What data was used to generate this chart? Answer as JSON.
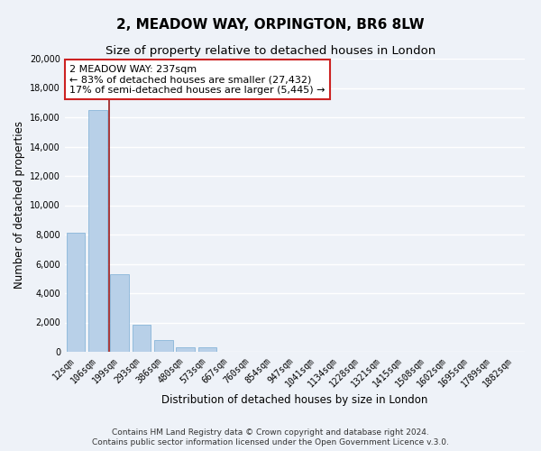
{
  "title": "2, MEADOW WAY, ORPINGTON, BR6 8LW",
  "subtitle": "Size of property relative to detached houses in London",
  "xlabel": "Distribution of detached houses by size in London",
  "ylabel": "Number of detached properties",
  "categories": [
    "12sqm",
    "106sqm",
    "199sqm",
    "293sqm",
    "386sqm",
    "480sqm",
    "573sqm",
    "667sqm",
    "760sqm",
    "854sqm",
    "947sqm",
    "1041sqm",
    "1134sqm",
    "1228sqm",
    "1321sqm",
    "1415sqm",
    "1508sqm",
    "1602sqm",
    "1695sqm",
    "1789sqm",
    "1882sqm"
  ],
  "values": [
    8100,
    16500,
    5300,
    1850,
    800,
    300,
    300,
    0,
    0,
    0,
    0,
    0,
    0,
    0,
    0,
    0,
    0,
    0,
    0,
    0,
    0
  ],
  "bar_color": "#b8d0e8",
  "bar_edge_color": "#7aadd4",
  "vline_color": "#9b1a1a",
  "annotation_line1": "2 MEADOW WAY: 237sqm",
  "annotation_line2": "← 83% of detached houses are smaller (27,432)",
  "annotation_line3": "17% of semi-detached houses are larger (5,445) →",
  "annotation_box_color": "#ffffff",
  "annotation_box_edge": "#cc2222",
  "ylim": [
    0,
    20000
  ],
  "yticks": [
    0,
    2000,
    4000,
    6000,
    8000,
    10000,
    12000,
    14000,
    16000,
    18000,
    20000
  ],
  "footer1": "Contains HM Land Registry data © Crown copyright and database right 2024.",
  "footer2": "Contains public sector information licensed under the Open Government Licence v.3.0.",
  "bg_color": "#eef2f8",
  "plot_bg_color": "#eef2f8",
  "grid_color": "#ffffff",
  "title_fontsize": 11,
  "subtitle_fontsize": 9.5,
  "axis_label_fontsize": 8.5,
  "tick_fontsize": 7,
  "footer_fontsize": 6.5,
  "annot_fontsize": 8
}
